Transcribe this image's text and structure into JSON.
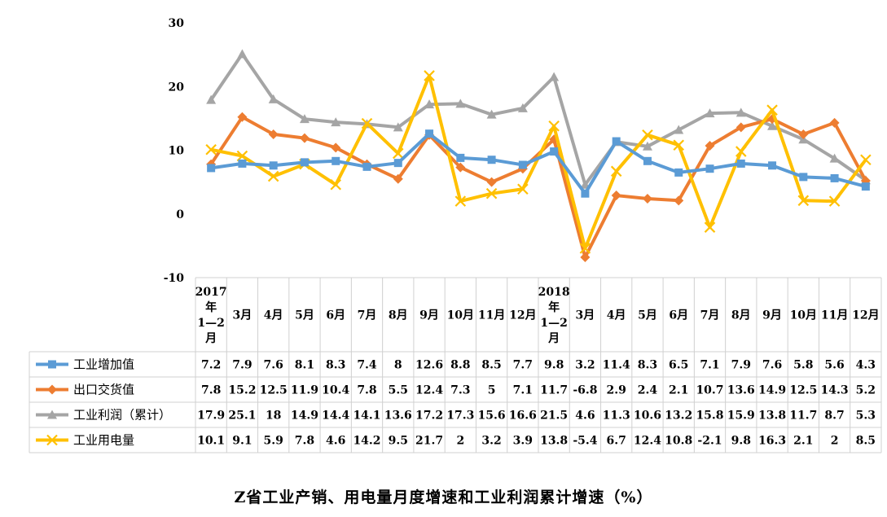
{
  "chart_data": {
    "type": "line",
    "title": "Z省工业产销、用电量月度增速和工业利润累计增速（%）",
    "xlabel": "",
    "ylabel": "",
    "ylim": [
      -10,
      30
    ],
    "yticks": [
      "30",
      "20",
      "10",
      "0",
      "-10"
    ],
    "categories": [
      [
        "2017",
        "年",
        "1—2",
        "月"
      ],
      [
        "3月"
      ],
      [
        "4月"
      ],
      [
        "5月"
      ],
      [
        "6月"
      ],
      [
        "7月"
      ],
      [
        "8月"
      ],
      [
        "9月"
      ],
      [
        "10月"
      ],
      [
        "11月"
      ],
      [
        "12月"
      ],
      [
        "2018",
        "年",
        "1—2",
        "月"
      ],
      [
        "3月"
      ],
      [
        "4月"
      ],
      [
        "5月"
      ],
      [
        "6月"
      ],
      [
        "7月"
      ],
      [
        "8月"
      ],
      [
        "9月"
      ],
      [
        "10月"
      ],
      [
        "11月"
      ],
      [
        "12月"
      ]
    ],
    "legend": "data-table",
    "series": [
      {
        "name": "工业增加值",
        "color": "#5B9BD5",
        "marker": "square",
        "values": [
          7.2,
          7.9,
          7.6,
          8.1,
          8.3,
          7.4,
          8,
          12.6,
          8.8,
          8.5,
          7.7,
          9.8,
          3.2,
          11.4,
          8.3,
          6.5,
          7.1,
          7.9,
          7.6,
          5.8,
          5.6,
          4.3
        ]
      },
      {
        "name": "出口交货值",
        "color": "#ED7D31",
        "marker": "diamond",
        "values": [
          7.8,
          15.2,
          12.5,
          11.9,
          10.4,
          7.8,
          5.5,
          12.4,
          7.3,
          5,
          7.1,
          11.7,
          -6.8,
          2.9,
          2.4,
          2.1,
          10.7,
          13.6,
          14.9,
          12.5,
          14.3,
          5.2
        ]
      },
      {
        "name": "工业利润（累计）",
        "color": "#A5A5A5",
        "marker": "triangle",
        "values": [
          17.9,
          25.1,
          18,
          14.9,
          14.4,
          14.1,
          13.6,
          17.2,
          17.3,
          15.6,
          16.6,
          21.5,
          4.6,
          11.3,
          10.6,
          13.2,
          15.8,
          15.9,
          13.8,
          11.7,
          8.7,
          5.3
        ]
      },
      {
        "name": "工业用电量",
        "color": "#FFC000",
        "marker": "x",
        "values": [
          10.1,
          9.1,
          5.9,
          7.8,
          4.6,
          14.2,
          9.5,
          21.7,
          2,
          3.2,
          3.9,
          13.8,
          -5.4,
          6.7,
          12.4,
          10.8,
          -2.1,
          9.8,
          16.3,
          2.1,
          2,
          8.5
        ]
      }
    ]
  }
}
